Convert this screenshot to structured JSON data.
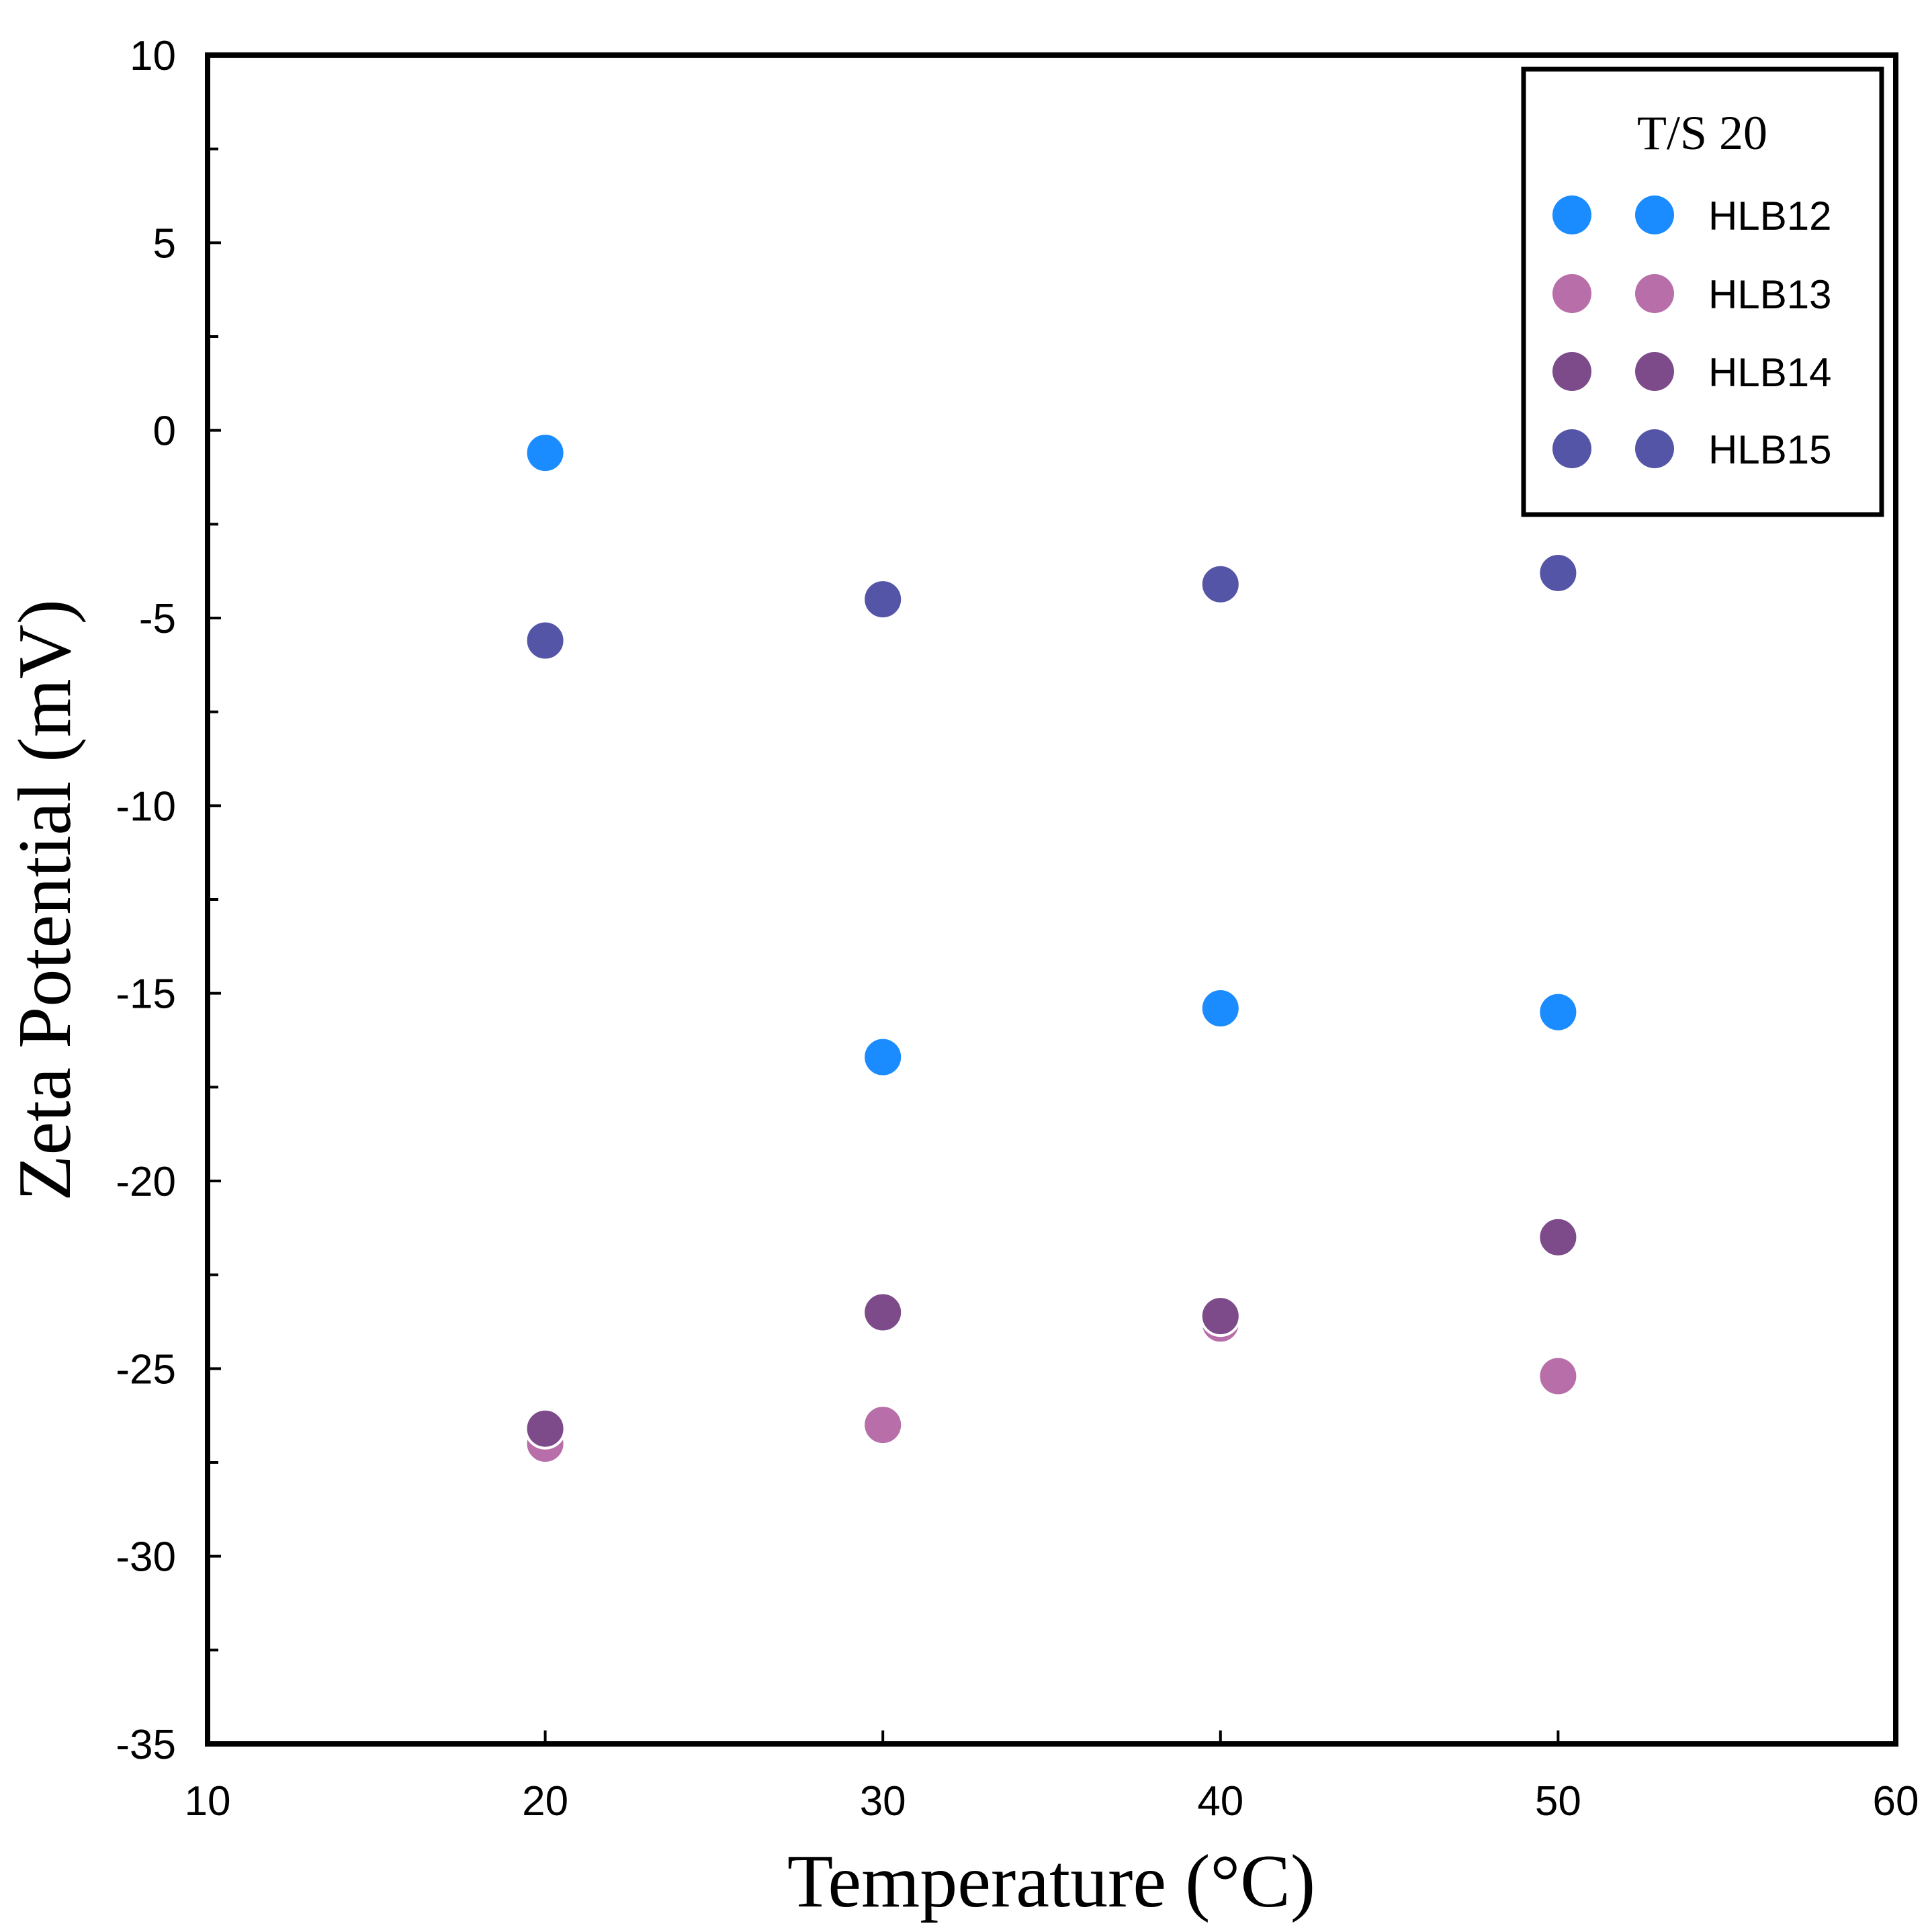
{
  "chart_data": {
    "type": "scatter",
    "title": "",
    "xlabel": "Temperature (°C)",
    "ylabel": "Zeta Potential (mV)",
    "xlim": [
      10,
      60
    ],
    "ylim": [
      -35,
      10
    ],
    "x_ticks": [
      10,
      20,
      30,
      40,
      50,
      60
    ],
    "y_ticks": [
      10,
      5,
      0,
      -5,
      -10,
      -15,
      -20,
      -25,
      -30,
      -35
    ],
    "y_minor_step": 2.5,
    "grid": false,
    "legend": {
      "title": "T/S 20",
      "placement": "top-right"
    },
    "series": [
      {
        "name": "HLB12",
        "color": "#1a8cff",
        "x": [
          20,
          30,
          40,
          50
        ],
        "y": [
          -0.6,
          -16.7,
          -15.4,
          -15.5
        ]
      },
      {
        "name": "HLB13",
        "color": "#b86fa9",
        "x": [
          20,
          30,
          40,
          50
        ],
        "y": [
          -27.0,
          -26.5,
          -23.8,
          -25.2
        ]
      },
      {
        "name": "HLB14",
        "color": "#7d4a8a",
        "x": [
          20,
          30,
          40,
          50
        ],
        "y": [
          -26.6,
          -23.5,
          -23.6,
          -21.5
        ]
      },
      {
        "name": "HLB15",
        "color": "#5555a8",
        "x": [
          20,
          30,
          40,
          50
        ],
        "y": [
          -5.6,
          -4.5,
          -4.1,
          -3.8
        ]
      }
    ]
  }
}
